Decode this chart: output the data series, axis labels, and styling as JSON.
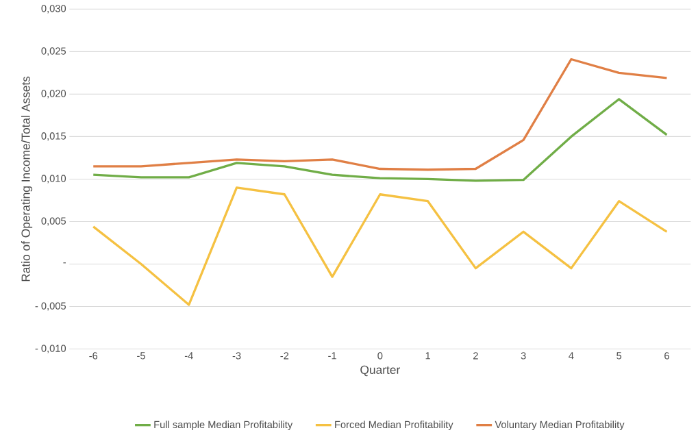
{
  "chart_data": {
    "type": "line",
    "xlabel": "Quarter",
    "ylabel": "Ratio of Operating Income/Total Assets",
    "categories": [
      "-6",
      "-5",
      "-4",
      "-3",
      "-2",
      "-1",
      "0",
      "1",
      "2",
      "3",
      "4",
      "5",
      "6"
    ],
    "series": [
      {
        "name": "Full sample Median Profitability",
        "color": "#70ad47",
        "values": [
          0.0105,
          0.0102,
          0.0102,
          0.0119,
          0.0115,
          0.0105,
          0.0101,
          0.01,
          0.0098,
          0.0099,
          0.015,
          0.0194,
          0.0152
        ]
      },
      {
        "name": "Forced Median Profitability",
        "color": "#f5c142",
        "values": [
          0.0044,
          0.0,
          -0.0048,
          0.009,
          0.0082,
          -0.0015,
          0.0082,
          0.0074,
          -0.0005,
          0.0038,
          -0.0005,
          0.0074,
          0.0038
        ]
      },
      {
        "name": "Voluntary Median Profitability",
        "color": "#e07f45",
        "values": [
          0.0115,
          0.0115,
          0.0119,
          0.0123,
          0.0121,
          0.0123,
          0.0112,
          0.0111,
          0.0112,
          0.0146,
          0.0241,
          0.0225,
          0.0219
        ]
      }
    ],
    "ylim": [
      -0.01,
      0.03
    ],
    "yticks": [
      {
        "value": -0.01,
        "label": "- 0,010"
      },
      {
        "value": -0.005,
        "label": "- 0,005"
      },
      {
        "value": 0,
        "label": "-"
      },
      {
        "value": 0.005,
        "label": "0,005"
      },
      {
        "value": 0.01,
        "label": "0,010"
      },
      {
        "value": 0.015,
        "label": "0,015"
      },
      {
        "value": 0.02,
        "label": "0,020"
      },
      {
        "value": 0.025,
        "label": "0,025"
      },
      {
        "value": 0.03,
        "label": "0,030"
      }
    ],
    "grid": "y",
    "legend": "bottom",
    "marker": "none",
    "line_style": "solid"
  }
}
